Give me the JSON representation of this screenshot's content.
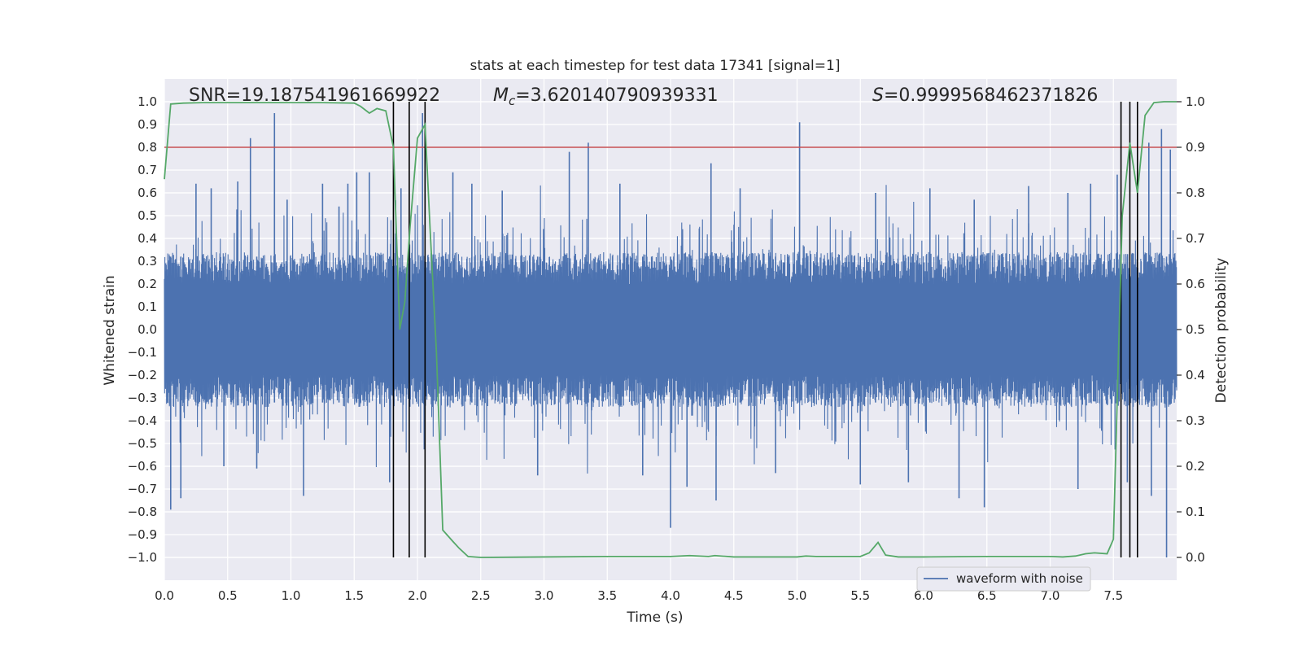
{
  "chart_data": {
    "type": "line",
    "title": "stats at each timestep for test data 17341 [signal=1]",
    "xlabel": "Time (s)",
    "ylabel": "Whitened strain",
    "y2label": "Detection probability",
    "xlim": [
      0.0,
      8.0
    ],
    "ylim": [
      -1.1,
      1.1
    ],
    "y2lim": [
      -0.05,
      1.05
    ],
    "x_ticks": [
      0.0,
      0.5,
      1.0,
      1.5,
      2.0,
      2.5,
      3.0,
      3.5,
      4.0,
      4.5,
      5.0,
      5.5,
      6.0,
      6.5,
      7.0,
      7.5
    ],
    "y_ticks": [
      -1.0,
      -0.9,
      -0.8,
      -0.7,
      -0.6,
      -0.5,
      -0.4,
      -0.3,
      -0.2,
      -0.1,
      0.0,
      0.1,
      0.2,
      0.3,
      0.4,
      0.5,
      0.6,
      0.7,
      0.8,
      0.9,
      1.0
    ],
    "y2_ticks": [
      0.0,
      0.1,
      0.2,
      0.3,
      0.4,
      0.5,
      0.6,
      0.7,
      0.8,
      0.9,
      1.0
    ],
    "y_tick_labels": [
      "−1.0",
      "−0.9",
      "−0.8",
      "−0.7",
      "−0.6",
      "−0.5",
      "−0.4",
      "−0.3",
      "−0.2",
      "−0.1",
      "0.0",
      "0.1",
      "0.2",
      "0.3",
      "0.4",
      "0.5",
      "0.6",
      "0.7",
      "0.8",
      "0.9",
      "1.0"
    ],
    "x_tick_labels": [
      "0.0",
      "0.5",
      "1.0",
      "1.5",
      "2.0",
      "2.5",
      "3.0",
      "3.5",
      "4.0",
      "4.5",
      "5.0",
      "5.5",
      "6.0",
      "6.5",
      "7.0",
      "7.5"
    ],
    "y2_tick_labels": [
      "0.0",
      "0.1",
      "0.2",
      "0.3",
      "0.4",
      "0.5",
      "0.6",
      "0.7",
      "0.8",
      "0.9",
      "1.0"
    ],
    "grid": true,
    "legend_position": "lower-right",
    "annotations": {
      "snr": "SNR=19.187541961669922",
      "mc_symbol": "M",
      "mc_subscript": "c",
      "mc_value": "=3.620140790939331",
      "s_symbol": "S",
      "s_value": "=0.9999568462371826"
    },
    "threshold": {
      "y2": 0.9,
      "color": "#c44e52"
    },
    "vertical_lines_x": [
      1.81,
      1.935,
      2.06,
      7.56,
      7.63,
      7.69
    ],
    "series": [
      {
        "name": "waveform with noise",
        "color": "#4c72b0",
        "axis": "left",
        "style": "noise",
        "spikes": [
          [
            0.05,
            -0.79
          ],
          [
            0.13,
            -0.74
          ],
          [
            0.25,
            0.64
          ],
          [
            0.37,
            0.62
          ],
          [
            0.47,
            -0.6
          ],
          [
            0.58,
            0.65
          ],
          [
            0.68,
            0.84
          ],
          [
            0.73,
            -0.61
          ],
          [
            0.87,
            0.95
          ],
          [
            0.97,
            0.57
          ],
          [
            1.1,
            -0.73
          ],
          [
            1.25,
            0.64
          ],
          [
            1.38,
            0.54
          ],
          [
            1.45,
            0.64
          ],
          [
            1.52,
            0.69
          ],
          [
            1.62,
            0.69
          ],
          [
            1.78,
            -0.67
          ],
          [
            1.87,
            0.62
          ],
          [
            2.04,
            0.95
          ],
          [
            2.28,
            0.69
          ],
          [
            2.43,
            0.64
          ],
          [
            2.67,
            0.61
          ],
          [
            2.95,
            -0.64
          ],
          [
            3.2,
            0.78
          ],
          [
            3.35,
            0.82
          ],
          [
            3.6,
            0.64
          ],
          [
            3.78,
            -0.64
          ],
          [
            4.0,
            -0.87
          ],
          [
            4.13,
            -0.69
          ],
          [
            4.32,
            0.73
          ],
          [
            4.36,
            -0.75
          ],
          [
            4.55,
            0.62
          ],
          [
            4.83,
            -0.63
          ],
          [
            5.02,
            0.91
          ],
          [
            5.5,
            -0.68
          ],
          [
            5.62,
            0.6
          ],
          [
            5.88,
            -0.67
          ],
          [
            6.05,
            0.62
          ],
          [
            6.28,
            -0.74
          ],
          [
            6.4,
            0.57
          ],
          [
            6.48,
            -0.78
          ],
          [
            6.83,
            0.63
          ],
          [
            7.14,
            0.6
          ],
          [
            7.22,
            -0.7
          ],
          [
            7.32,
            0.64
          ],
          [
            7.53,
            0.68
          ],
          [
            7.61,
            -0.67
          ],
          [
            7.78,
            0.82
          ],
          [
            7.8,
            -0.73
          ],
          [
            7.88,
            0.88
          ],
          [
            7.92,
            -1.0
          ],
          [
            7.95,
            0.79
          ]
        ]
      },
      {
        "name": "detection probability",
        "color": "#55a868",
        "axis": "right",
        "x": [
          0.0,
          0.05,
          0.15,
          0.3,
          0.5,
          0.75,
          1.0,
          1.25,
          1.5,
          1.55,
          1.62,
          1.68,
          1.75,
          1.81,
          1.86,
          1.9,
          1.94,
          2.0,
          2.06,
          2.1,
          2.15,
          2.2,
          2.28,
          2.33,
          2.4,
          2.5,
          3.0,
          3.5,
          4.0,
          4.15,
          4.3,
          4.35,
          4.5,
          5.0,
          5.07,
          5.15,
          5.5,
          5.57,
          5.64,
          5.7,
          5.8,
          6.0,
          6.5,
          7.0,
          7.1,
          7.2,
          7.28,
          7.35,
          7.45,
          7.5,
          7.57,
          7.63,
          7.69,
          7.75,
          7.82,
          7.9,
          8.0
        ],
        "y": [
          0.83,
          0.995,
          0.997,
          0.998,
          0.998,
          0.998,
          0.998,
          0.998,
          0.997,
          0.99,
          0.975,
          0.985,
          0.98,
          0.9,
          0.5,
          0.56,
          0.72,
          0.92,
          0.95,
          0.72,
          0.45,
          0.06,
          0.035,
          0.02,
          0.002,
          0.0,
          0.001,
          0.002,
          0.002,
          0.004,
          0.002,
          0.004,
          0.001,
          0.001,
          0.003,
          0.002,
          0.002,
          0.01,
          0.033,
          0.005,
          0.001,
          0.001,
          0.002,
          0.002,
          0.001,
          0.003,
          0.008,
          0.01,
          0.008,
          0.04,
          0.75,
          0.91,
          0.8,
          0.97,
          0.998,
          1.0,
          1.0
        ]
      }
    ]
  }
}
